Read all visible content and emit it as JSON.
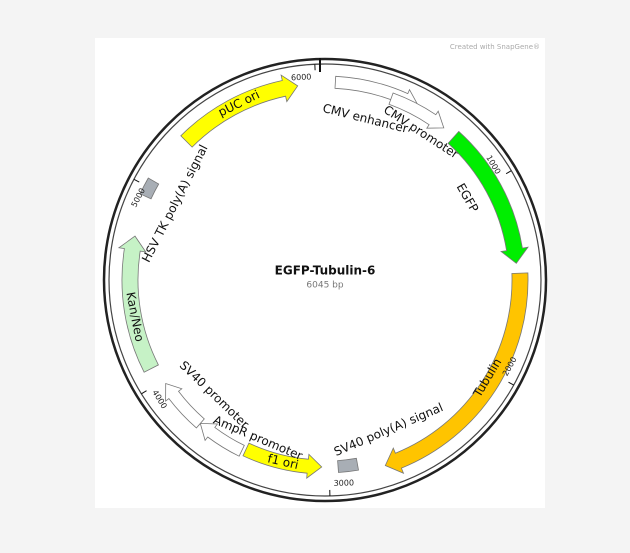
{
  "title": "EGFP-Tubulin-6",
  "size": "6045 bp",
  "watermark": "Created with SnapGene®",
  "ticks": [
    "1000",
    "2000",
    "3000",
    "4000",
    "5000",
    "6000"
  ],
  "features": [
    {
      "label": "pUC ori"
    },
    {
      "label": "CMV enhancer"
    },
    {
      "label": "CMV promoter"
    },
    {
      "label": "EGFP"
    },
    {
      "label": "Tubulin"
    },
    {
      "label": "SV40 poly(A) signal"
    },
    {
      "label": "f1 ori"
    },
    {
      "label": "AmpR promoter"
    },
    {
      "label": "SV40 promoter"
    },
    {
      "label": "Kan/Neo"
    },
    {
      "label": "HSV TK poly(A) signal"
    }
  ]
}
